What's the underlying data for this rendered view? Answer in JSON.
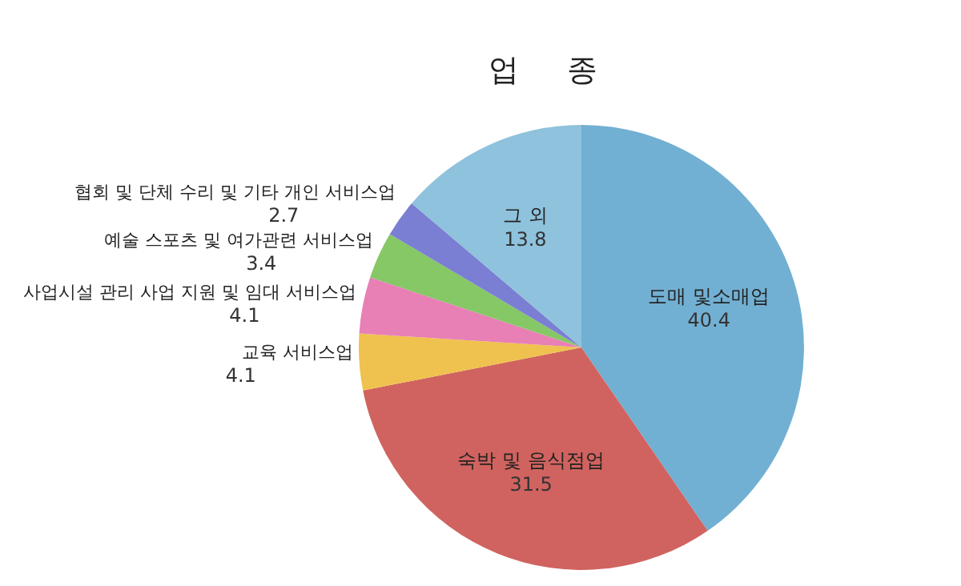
{
  "chart_data": {
    "type": "pie",
    "title": "업 종",
    "data_labels": true,
    "categories": [
      "도매 및소매업",
      "숙박 및 음식점업",
      "교육 서비스업",
      "사업시설 관리 사업 지원 및 임대 서비스업",
      "예술 스포츠 및 여가관련 서비스업",
      "협회 및 단체 수리 및 기타 개인 서비스업",
      "그 외"
    ],
    "values": [
      40.4,
      31.5,
      4.1,
      4.1,
      3.4,
      2.7,
      13.8
    ],
    "colors": [
      "#72b0d3",
      "#d0635f",
      "#efc24f",
      "#e87fb5",
      "#86c766",
      "#7a7fd3",
      "#8fc2dc"
    ]
  }
}
